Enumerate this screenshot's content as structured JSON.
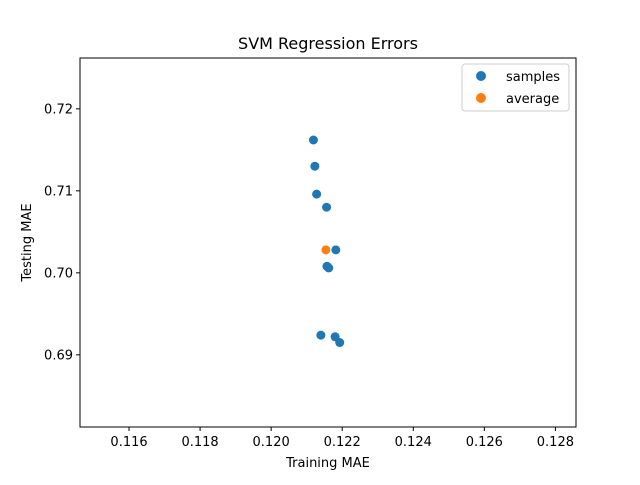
{
  "chart_data": {
    "type": "scatter",
    "title": "SVM Regression Errors",
    "xlabel": "Training MAE",
    "ylabel": "Testing MAE",
    "xlim": [
      0.11462,
      0.12858
    ],
    "ylim": [
      0.6812,
      0.7262
    ],
    "grid": false,
    "legend_position": "top-right",
    "x_ticks": [
      "0.116",
      "0.118",
      "0.120",
      "0.122",
      "0.124",
      "0.126",
      "0.128"
    ],
    "y_ticks": [
      "0.69",
      "0.70",
      "0.71",
      "0.72"
    ],
    "series": [
      {
        "name": "samples",
        "color": "#1f77b4",
        "points": [
          {
            "x": 0.12119,
            "y": 0.7162
          },
          {
            "x": 0.12123,
            "y": 0.713
          },
          {
            "x": 0.12128,
            "y": 0.7096
          },
          {
            "x": 0.12156,
            "y": 0.708
          },
          {
            "x": 0.12182,
            "y": 0.7028
          },
          {
            "x": 0.12157,
            "y": 0.7008
          },
          {
            "x": 0.12162,
            "y": 0.7006
          },
          {
            "x": 0.1214,
            "y": 0.6924
          },
          {
            "x": 0.1218,
            "y": 0.6922
          },
          {
            "x": 0.12193,
            "y": 0.6915
          }
        ]
      },
      {
        "name": "average",
        "color": "#ff7f0e",
        "points": [
          {
            "x": 0.12154,
            "y": 0.7028
          }
        ]
      }
    ]
  }
}
